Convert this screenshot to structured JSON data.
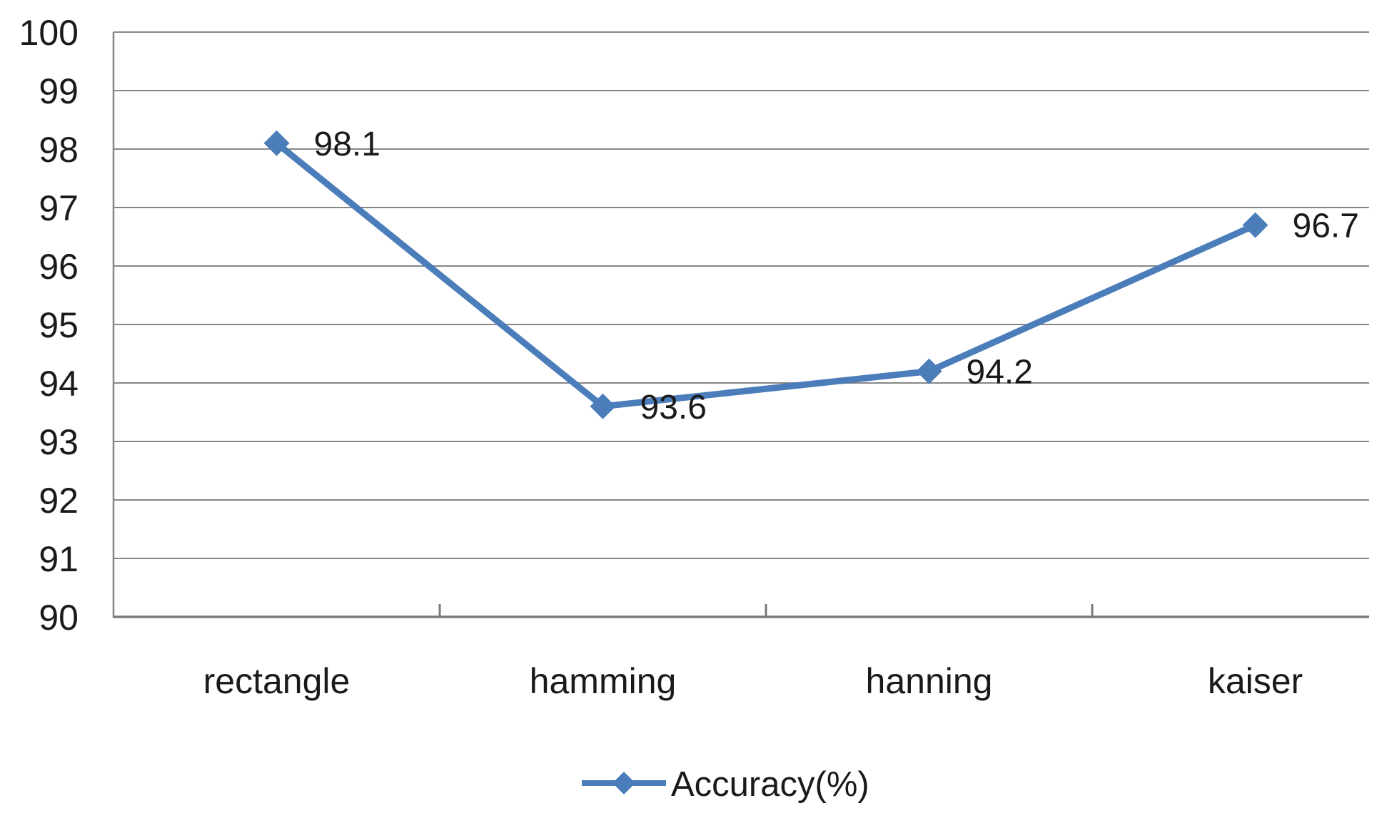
{
  "chart_data": {
    "type": "line",
    "title": "",
    "categories": [
      "rectangle",
      "hamming",
      "hanning",
      "kaiser"
    ],
    "series": [
      {
        "name": "Accuracy(%)",
        "values": [
          98.1,
          93.6,
          94.2,
          96.7
        ],
        "data_labels": [
          "98.1",
          "93.6",
          "94.2",
          "96.7"
        ]
      }
    ],
    "xlabel": "",
    "ylabel": "",
    "ylim": [
      90,
      100
    ],
    "ytick_step": 1,
    "ytick_labels": [
      "90",
      "91",
      "92",
      "93",
      "94",
      "95",
      "96",
      "97",
      "98",
      "99",
      "100"
    ],
    "grid": "horizontal",
    "marker": "diamond",
    "legend": {
      "position": "bottom-center",
      "entries": [
        "Accuracy(%)"
      ]
    },
    "colors": {
      "series": "#4a7dba",
      "gridline": "#868686",
      "axis": "#7a7a7a",
      "text": "#1a1a1a",
      "background": "#ffffff"
    }
  }
}
